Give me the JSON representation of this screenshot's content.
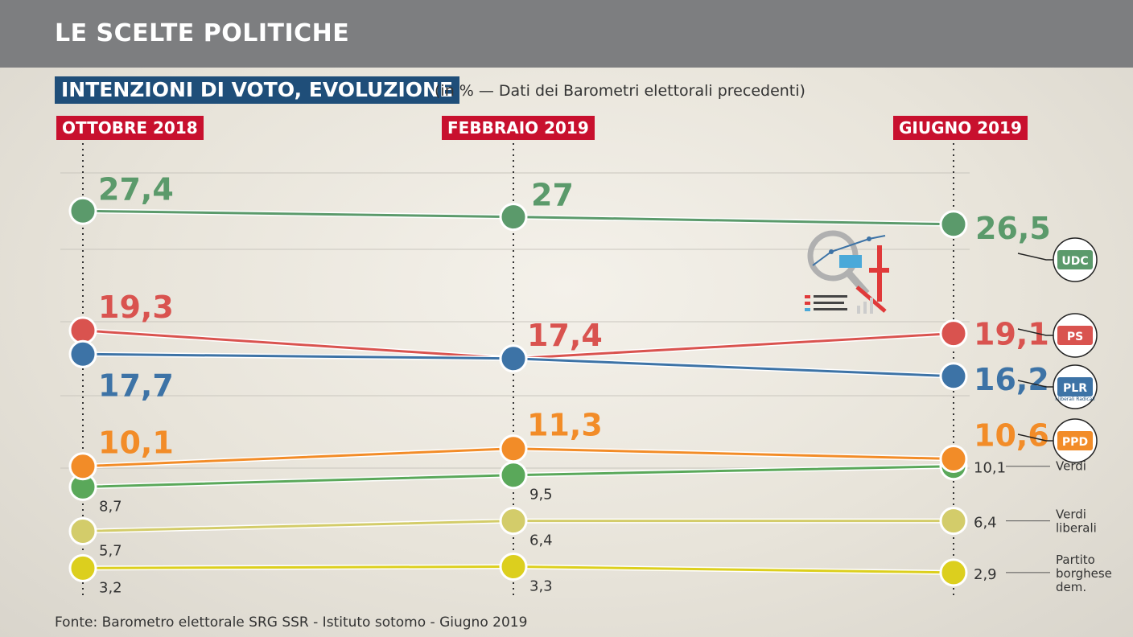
{
  "header": {
    "title": "LE SCELTE POLITICHE",
    "subtitle": "INTENZIONI DI VOTO, EVOLUZIONE",
    "subtitle_note": "(in % — Dati dei Barometri elettorali precedenti)"
  },
  "footer": {
    "source": "Fonte: Barometro elettorale SRG SSR - Istituto sotomo - Giugno 2019"
  },
  "colors": {
    "header_bg": "#7d7e80",
    "subtitle_bg": "#1f4e79",
    "period_bg": "#c8102e",
    "udc": "#5b9a6b",
    "ps": "#d9534f",
    "plr": "#3d73a6",
    "ppd": "#f28c28",
    "verdi": "#5aa85a",
    "verdi_liberali": "#d3cc6a",
    "pbd": "#dccf1e"
  },
  "chart_data": {
    "type": "line",
    "categories": [
      "OTTOBRE 2018",
      "FEBBRAIO 2019",
      "GIUGNO 2019"
    ],
    "ylim": [
      0,
      30
    ],
    "series": [
      {
        "name": "UDC",
        "label": "UDC",
        "values": [
          27.4,
          27,
          26.5
        ],
        "value_labels": [
          "27,4",
          "27",
          "26,5"
        ],
        "color": "#5b9a6b",
        "major": true
      },
      {
        "name": "PS",
        "label": "PS",
        "values": [
          19.3,
          17.4,
          19.1
        ],
        "value_labels": [
          "19,3",
          "17,4",
          "19,1"
        ],
        "color": "#d9534f",
        "major": true
      },
      {
        "name": "PLR",
        "label": "PLR",
        "sublabel": "I liberali Radicali",
        "values": [
          17.7,
          17.4,
          16.2
        ],
        "value_labels": [
          "17,7",
          "17,4",
          "16,2"
        ],
        "color": "#3d73a6",
        "major": true
      },
      {
        "name": "PPD",
        "label": "PPD",
        "values": [
          10.1,
          11.3,
          10.6
        ],
        "value_labels": [
          "10,1",
          "11,3",
          "10,6"
        ],
        "color": "#f28c28",
        "major": true
      },
      {
        "name": "Verdi",
        "label": "Verdi",
        "values": [
          8.7,
          9.5,
          10.1
        ],
        "value_labels": [
          "8,7",
          "9,5",
          "10,1"
        ],
        "color": "#5aa85a",
        "major": false
      },
      {
        "name": "Verdi liberali",
        "label": "Verdi liberali",
        "values": [
          5.7,
          6.4,
          6.4
        ],
        "value_labels": [
          "5,7",
          "6,4",
          "6,4"
        ],
        "color": "#d3cc6a",
        "major": false
      },
      {
        "name": "Partito borghese dem.",
        "label": "Partito borghese dem.",
        "values": [
          3.2,
          3.3,
          2.9
        ],
        "value_labels": [
          "3,2",
          "3,3",
          "2,9"
        ],
        "color": "#dccf1e",
        "major": false
      }
    ]
  }
}
